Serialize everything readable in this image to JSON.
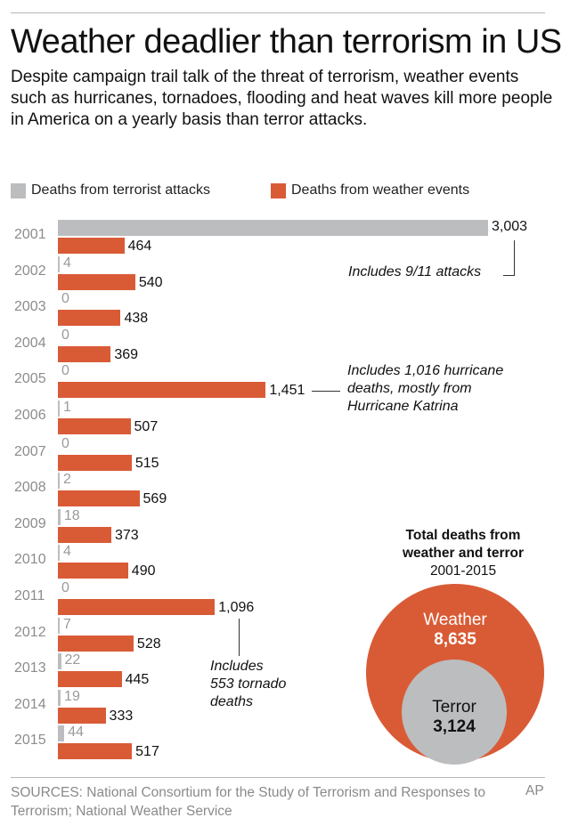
{
  "header": {
    "title": "Weather deadlier than terrorism in US",
    "subtitle": "Despite campaign trail talk of the threat of terrorism, weather events such as hurricanes, tornadoes, flooding and heat waves kill more people in America on a yearly basis than terror attacks."
  },
  "legend": {
    "terror_label": "Deaths from terrorist attacks",
    "weather_label": "Deaths from weather events"
  },
  "colors": {
    "terror": "#bcbdbf",
    "weather": "#d95b36"
  },
  "rows": [
    {
      "year": "2001",
      "terror": 3003,
      "terror_label": "3,003",
      "weather": 464,
      "weather_label": "464"
    },
    {
      "year": "2002",
      "terror": 4,
      "terror_label": "4",
      "weather": 540,
      "weather_label": "540"
    },
    {
      "year": "2003",
      "terror": 0,
      "terror_label": "0",
      "weather": 438,
      "weather_label": "438"
    },
    {
      "year": "2004",
      "terror": 0,
      "terror_label": "0",
      "weather": 369,
      "weather_label": "369"
    },
    {
      "year": "2005",
      "terror": 0,
      "terror_label": "0",
      "weather": 1451,
      "weather_label": "1,451"
    },
    {
      "year": "2006",
      "terror": 1,
      "terror_label": "1",
      "weather": 507,
      "weather_label": "507"
    },
    {
      "year": "2007",
      "terror": 0,
      "terror_label": "0",
      "weather": 515,
      "weather_label": "515"
    },
    {
      "year": "2008",
      "terror": 2,
      "terror_label": "2",
      "weather": 569,
      "weather_label": "569"
    },
    {
      "year": "2009",
      "terror": 18,
      "terror_label": "18",
      "weather": 373,
      "weather_label": "373"
    },
    {
      "year": "2010",
      "terror": 4,
      "terror_label": "4",
      "weather": 490,
      "weather_label": "490"
    },
    {
      "year": "2011",
      "terror": 0,
      "terror_label": "0",
      "weather": 1096,
      "weather_label": "1,096"
    },
    {
      "year": "2012",
      "terror": 7,
      "terror_label": "7",
      "weather": 528,
      "weather_label": "528"
    },
    {
      "year": "2013",
      "terror": 22,
      "terror_label": "22",
      "weather": 445,
      "weather_label": "445"
    },
    {
      "year": "2014",
      "terror": 19,
      "terror_label": "19",
      "weather": 333,
      "weather_label": "333"
    },
    {
      "year": "2015",
      "terror": 44,
      "terror_label": "44",
      "weather": 517,
      "weather_label": "517"
    }
  ],
  "annotations": {
    "a2001": "Includes 9/11 attacks",
    "a2005": [
      "Includes 1,016 hurricane",
      "deaths, mostly from",
      "Hurricane Katrina"
    ],
    "a2011": [
      "Includes",
      "553 tornado",
      "deaths"
    ]
  },
  "totals": {
    "title_line1": "Total deaths from",
    "title_line2": "weather and terror",
    "period": "2001-2015",
    "weather_label": "Weather",
    "weather_value": "8,635",
    "terror_label": "Terror",
    "terror_value": "3,124"
  },
  "footer": {
    "sources": "SOURCES: National Consortium for the Study of Terrorism and Responses to Terrorism; National Weather Service",
    "credit": "AP"
  },
  "chart_data": [
    {
      "type": "bar",
      "orientation": "horizontal",
      "title": "Weather deadlier than terrorism in US",
      "categories": [
        "2001",
        "2002",
        "2003",
        "2004",
        "2005",
        "2006",
        "2007",
        "2008",
        "2009",
        "2010",
        "2011",
        "2012",
        "2013",
        "2014",
        "2015"
      ],
      "series": [
        {
          "name": "Deaths from terrorist attacks",
          "color": "#bcbdbf",
          "values": [
            3003,
            4,
            0,
            0,
            0,
            1,
            0,
            2,
            18,
            4,
            0,
            7,
            22,
            19,
            44
          ]
        },
        {
          "name": "Deaths from weather events",
          "color": "#d95b36",
          "values": [
            464,
            540,
            438,
            369,
            1451,
            507,
            515,
            569,
            373,
            490,
            1096,
            528,
            445,
            333,
            517
          ]
        }
      ],
      "annotations": [
        {
          "category": "2001",
          "series": "Deaths from terrorist attacks",
          "text": "Includes 9/11 attacks"
        },
        {
          "category": "2005",
          "series": "Deaths from weather events",
          "text": "Includes 1,016 hurricane deaths, mostly from Hurricane Katrina"
        },
        {
          "category": "2011",
          "series": "Deaths from weather events",
          "text": "Includes 553 tornado deaths"
        }
      ],
      "legend_position": "top",
      "grid": false
    },
    {
      "type": "nested-circles",
      "title": "Total deaths from weather and terror 2001-2015",
      "categories": [
        "Weather",
        "Terror"
      ],
      "values": [
        8635,
        3124
      ],
      "colors": [
        "#d95b36",
        "#bcbdbf"
      ]
    }
  ]
}
